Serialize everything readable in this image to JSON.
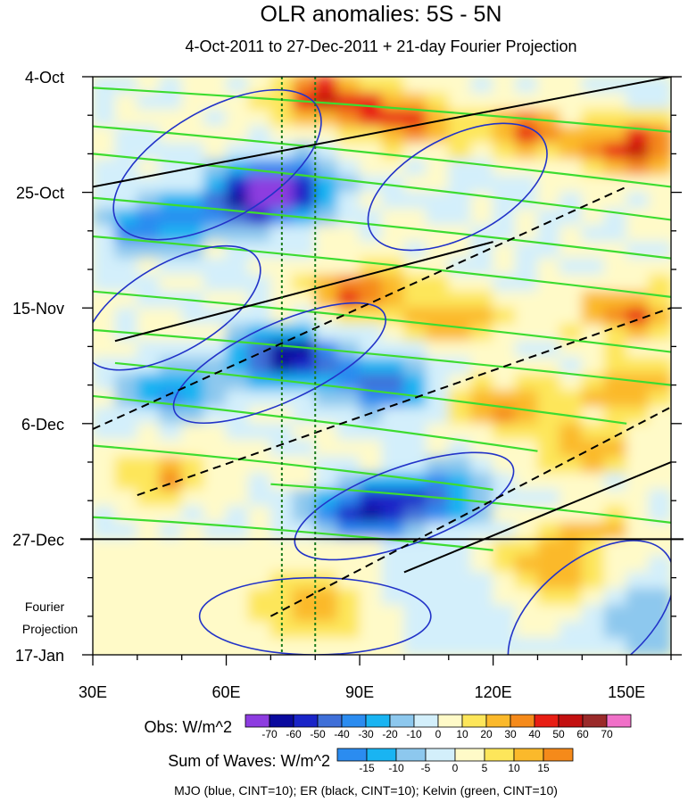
{
  "chart_data": {
    "type": "heatmap",
    "title": "OLR anomalies: 5S - 5N",
    "subtitle": "4-Oct-2011 to 27-Dec-2011 + 21-day Fourier Projection",
    "x_axis": {
      "range": [
        30,
        160
      ],
      "ticks": [
        30,
        60,
        90,
        120,
        150
      ],
      "tick_labels": [
        "30E",
        "60E",
        "90E",
        "120E",
        "150E"
      ]
    },
    "y_axis": {
      "range_days": [
        0,
        105
      ],
      "ticks_days": [
        0,
        21,
        42,
        63,
        84,
        105
      ],
      "tick_labels": [
        "4-Oct",
        "25-Oct",
        "15-Nov",
        "6-Dec",
        "27-Dec",
        "17-Jan"
      ],
      "projection_label": [
        "Fourier",
        "Projection"
      ]
    },
    "observed_end_day": 84,
    "reference_lines_lon": [
      72.5,
      80
    ],
    "obs_colorbar": {
      "label": "Obs: W/m^2",
      "levels": [
        "-70",
        "-60",
        "-50",
        "-40",
        "-30",
        "-20",
        "-10",
        "0",
        "10",
        "20",
        "30",
        "40",
        "50",
        "60",
        "70"
      ],
      "colors": [
        "#8d3ce0",
        "#0a0a9e",
        "#1a25c8",
        "#3f6fd8",
        "#2b8cf0",
        "#19b4f2",
        "#8dc8ee",
        "#d3effb",
        "#fffac8",
        "#fde65a",
        "#fbb92b",
        "#f58a1a",
        "#e81e14",
        "#c31010",
        "#9a2a2a",
        "#f070c8"
      ]
    },
    "wave_colorbar": {
      "label": "Sum of Waves: W/m^2",
      "levels": [
        "-15",
        "-10",
        "-5",
        "0",
        "5",
        "10",
        "15"
      ],
      "colors": [
        "#2b8cf0",
        "#19b4f2",
        "#8dc8ee",
        "#d3effb",
        "#fffac8",
        "#fde65a",
        "#fbb92b",
        "#f58a1a"
      ]
    },
    "footer": "MJO (blue, CINT=10); ER (black, CINT=10); Kelvin (green, CINT=10)",
    "obs_anomaly_centers": [
      {
        "lon": 82,
        "day": 4,
        "value": 50
      },
      {
        "lon": 100,
        "day": 8,
        "value": 45
      },
      {
        "lon": 152,
        "day": 13,
        "value": 55
      },
      {
        "lon": 128,
        "day": 10,
        "value": 38
      },
      {
        "lon": 72,
        "day": 20,
        "value": -60
      },
      {
        "lon": 66,
        "day": 23,
        "value": -55
      },
      {
        "lon": 44,
        "day": 27,
        "value": -40
      },
      {
        "lon": 90,
        "day": 39,
        "value": 42
      },
      {
        "lon": 112,
        "day": 44,
        "value": 30
      },
      {
        "lon": 150,
        "day": 43,
        "value": 38
      },
      {
        "lon": 74,
        "day": 51,
        "value": -70
      },
      {
        "lon": 95,
        "day": 56,
        "value": -45
      },
      {
        "lon": 48,
        "day": 57,
        "value": -35
      },
      {
        "lon": 122,
        "day": 60,
        "value": 35
      },
      {
        "lon": 140,
        "day": 68,
        "value": 28
      },
      {
        "lon": 150,
        "day": 57,
        "value": 30
      },
      {
        "lon": 92,
        "day": 79,
        "value": -65
      },
      {
        "lon": 108,
        "day": 76,
        "value": -40
      },
      {
        "lon": 46,
        "day": 73,
        "value": 26
      },
      {
        "lon": 142,
        "day": 84,
        "value": 32
      }
    ],
    "wave_anomaly_centers": [
      {
        "lon": 80,
        "day": 97,
        "value": 12
      },
      {
        "lon": 134,
        "day": 89,
        "value": 14
      },
      {
        "lon": 50,
        "day": 89,
        "value": 5
      },
      {
        "lon": 155,
        "day": 98,
        "value": -10
      },
      {
        "lon": 110,
        "day": 94,
        "value": -5
      }
    ]
  }
}
